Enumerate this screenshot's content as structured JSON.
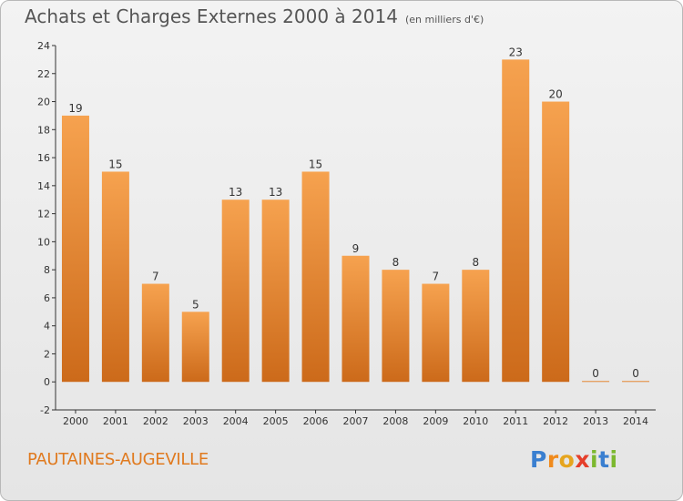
{
  "header": {
    "title": "Achats et Charges Externes 2000 à 2014",
    "unit": "(en milliers d'€)"
  },
  "footer": {
    "commune": "PAUTAINES-AUGEVILLE",
    "logo_letters": [
      "P",
      "r",
      "o",
      "x",
      "i",
      "t",
      "i"
    ]
  },
  "colors": {
    "bar_light": "#f6a24f",
    "bar_dark": "#cc6a1a",
    "commune_text": "#e07a1f",
    "logo": [
      "#3a7fd0",
      "#f08a1c",
      "#e6a51e",
      "#e53e2a",
      "#7cb82f",
      "#3a7fd0",
      "#7cb82f"
    ]
  },
  "chart_data": {
    "type": "bar",
    "title": "Achats et Charges Externes 2000 à 2014",
    "subtitle": "(en milliers d'€)",
    "categories": [
      "2000",
      "2001",
      "2002",
      "2003",
      "2004",
      "2005",
      "2006",
      "2007",
      "2008",
      "2009",
      "2010",
      "2011",
      "2012",
      "2013",
      "2014"
    ],
    "values": [
      19,
      15,
      7,
      5,
      13,
      13,
      15,
      9,
      8,
      7,
      8,
      23,
      20,
      0,
      0
    ],
    "value_labels": [
      "19",
      "15",
      "7",
      "5",
      "13",
      "13",
      "15",
      "9",
      "8",
      "7",
      "8",
      "23",
      "20",
      "0",
      "0"
    ],
    "yticks": [
      "-2",
      "0",
      "2",
      "4",
      "6",
      "8",
      "10",
      "12",
      "14",
      "16",
      "18",
      "20",
      "22",
      "24"
    ],
    "ylim": [
      -2,
      24
    ],
    "grid": false,
    "legend": "none"
  }
}
